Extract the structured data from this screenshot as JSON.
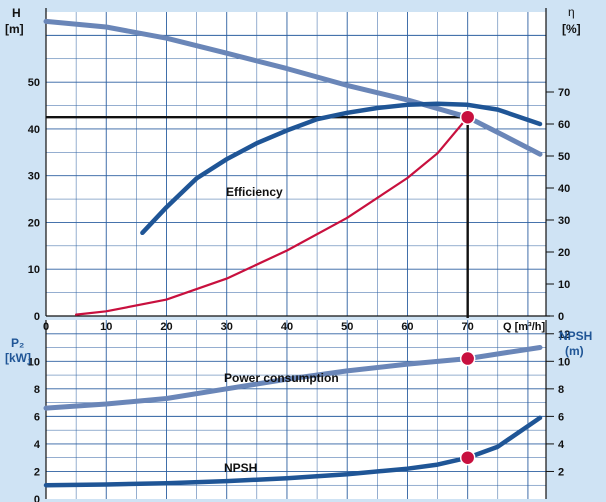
{
  "chart_data": [
    {
      "type": "line",
      "x_unit_label": "Q [m³/h]",
      "x_ticks": [
        0,
        10,
        20,
        30,
        40,
        50,
        60,
        70
      ],
      "xlim": [
        0,
        83
      ],
      "left_axis": {
        "label_top": "H",
        "label_unit": "[m]",
        "ticks": [
          0,
          10,
          20,
          30,
          40,
          50
        ],
        "ylim": [
          0,
          65
        ]
      },
      "right_axis": {
        "label_top": "η",
        "label_unit": "[%]",
        "ticks": [
          0,
          10,
          20,
          30,
          40,
          50,
          60,
          70
        ],
        "ylim": [
          0,
          95
        ]
      },
      "duty_point": {
        "Q": 70,
        "H": 42.5
      },
      "series": [
        {
          "name": "",
          "axis": "left",
          "color": "#6a86b8",
          "x": [
            0,
            10,
            20,
            30,
            40,
            50,
            60,
            70,
            76,
            82
          ],
          "y": [
            63,
            61.8,
            59.4,
            56.2,
            52.9,
            49.3,
            46.2,
            42.5,
            38.6,
            34.6
          ]
        },
        {
          "name": "",
          "axis": "left",
          "color": "#c8103e",
          "x": [
            5,
            10,
            20,
            30,
            40,
            50,
            60,
            65,
            70
          ],
          "y": [
            0.3,
            1,
            3.5,
            8,
            14,
            21,
            29.5,
            34.8,
            42.5
          ]
        },
        {
          "name": "Efficiency",
          "axis": "right",
          "color": "#1f5596",
          "x": [
            16,
            20,
            25,
            30,
            35,
            40,
            45,
            50,
            55,
            60,
            65,
            70,
            75,
            82
          ],
          "y": [
            26,
            34,
            43,
            49,
            54,
            58,
            61.5,
            63.5,
            65,
            66,
            66.3,
            66,
            64.5,
            60
          ]
        }
      ],
      "texts": {
        "efficiency": "Efficiency"
      }
    },
    {
      "type": "line",
      "left_axis": {
        "label_top": "P₂",
        "label_unit": "[kW]",
        "ticks": [
          0,
          2,
          4,
          6,
          8,
          10
        ],
        "ylim": [
          0,
          13
        ]
      },
      "right_axis": {
        "label_top": "NPSH",
        "label_unit": "(m)",
        "ticks": [
          2,
          4,
          6,
          8,
          10,
          12
        ],
        "ylim": [
          0,
          13
        ]
      },
      "series": [
        {
          "name": "Power consumption",
          "axis": "left",
          "color": "#6a86b8",
          "x": [
            0,
            10,
            20,
            30,
            40,
            50,
            60,
            70,
            76,
            82
          ],
          "y": [
            6.6,
            6.9,
            7.3,
            8,
            8.7,
            9.3,
            9.8,
            10.2,
            10.6,
            11
          ]
        },
        {
          "name": "NPSH",
          "axis": "right",
          "color": "#1f5596",
          "x": [
            0,
            10,
            20,
            30,
            40,
            50,
            60,
            65,
            70,
            75,
            82
          ],
          "y": [
            1,
            1.05,
            1.15,
            1.3,
            1.5,
            1.8,
            2.2,
            2.5,
            3,
            3.8,
            5.9
          ]
        }
      ],
      "markers": [
        {
          "series": "Power consumption",
          "x": 70,
          "y": 10.2
        },
        {
          "series": "NPSH",
          "x": 70,
          "y": 3
        }
      ],
      "texts": {
        "power": "Power consumption",
        "npsh": "NPSH"
      }
    }
  ]
}
